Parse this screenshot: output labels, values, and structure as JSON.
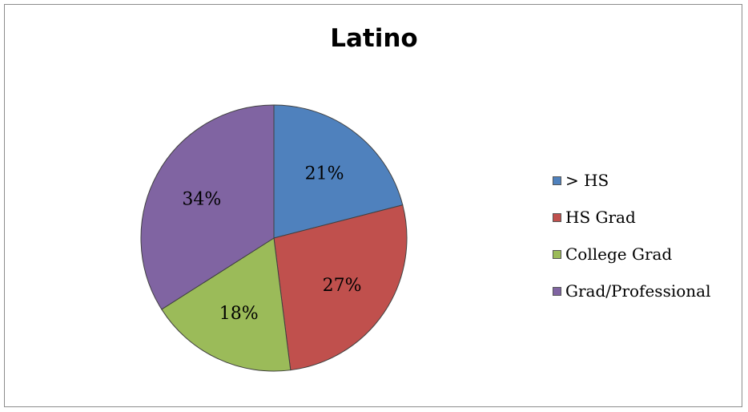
{
  "chart_data": {
    "type": "pie",
    "title": "Latino",
    "categories": [
      ">  HS",
      "HS Grad",
      "College Grad",
      "Grad/Professional"
    ],
    "values": [
      21,
      27,
      18,
      34
    ],
    "labels": [
      "21%",
      "27%",
      "18%",
      "34%"
    ],
    "colors": [
      "#4f81bd",
      "#c0504d",
      "#9bbb59",
      "#8064a2"
    ],
    "legend": "right"
  }
}
